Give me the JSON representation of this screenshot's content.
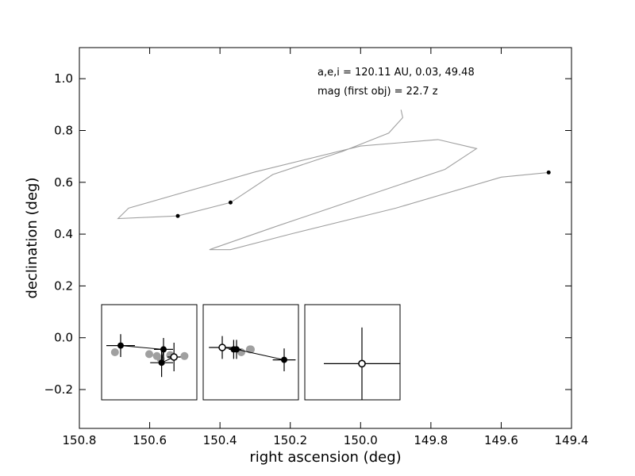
{
  "chart_data": {
    "type": "scatter",
    "xlabel": "right ascension (deg)",
    "ylabel": "declination (deg)",
    "xlim": [
      150.8,
      149.4
    ],
    "ylim": [
      -0.35,
      1.12
    ],
    "x_ticks": [
      150.8,
      150.6,
      150.4,
      150.2,
      150.0,
      149.8,
      149.6,
      149.4
    ],
    "x_tick_labels": [
      "150.8",
      "150.6",
      "150.4",
      "150.2",
      "150.0",
      "149.8",
      "149.6",
      "149.4"
    ],
    "y_ticks": [
      -0.2,
      0.0,
      0.2,
      0.4,
      0.6,
      0.8,
      1.0
    ],
    "y_tick_labels": [
      "−0.2",
      "0.0",
      "0.2",
      "0.4",
      "0.6",
      "0.8",
      "1.0"
    ],
    "grid": false,
    "annotations": [
      "a,e,i = 120.11 AU, 0.03, 49.48",
      "mag (first obj) =  22.7 z"
    ],
    "colors": {
      "orbit": "#a0a0a0",
      "points": "#000000",
      "predicted": "#a0a0a0"
    },
    "detections": [
      {
        "x": 150.52,
        "y": 0.47
      },
      {
        "x": 150.37,
        "y": 0.522
      },
      {
        "x": 149.465,
        "y": 0.638
      }
    ],
    "orbit_path": [
      {
        "x": 149.885,
        "y": 0.88
      },
      {
        "x": 149.88,
        "y": 0.85
      },
      {
        "x": 149.92,
        "y": 0.79
      },
      {
        "x": 150.05,
        "y": 0.72
      },
      {
        "x": 150.25,
        "y": 0.63
      },
      {
        "x": 150.37,
        "y": 0.522
      },
      {
        "x": 150.52,
        "y": 0.47
      },
      {
        "x": 150.69,
        "y": 0.46
      },
      {
        "x": 150.66,
        "y": 0.5
      },
      {
        "x": 150.3,
        "y": 0.64
      },
      {
        "x": 150.0,
        "y": 0.74
      },
      {
        "x": 149.78,
        "y": 0.765
      },
      {
        "x": 149.67,
        "y": 0.73
      },
      {
        "x": 149.76,
        "y": 0.65
      },
      {
        "x": 150.0,
        "y": 0.54
      },
      {
        "x": 150.24,
        "y": 0.43
      },
      {
        "x": 150.43,
        "y": 0.34
      },
      {
        "x": 150.37,
        "y": 0.34
      },
      {
        "x": 150.2,
        "y": 0.4
      },
      {
        "x": 149.9,
        "y": 0.5
      },
      {
        "x": 149.6,
        "y": 0.62
      },
      {
        "x": 149.465,
        "y": 0.638
      }
    ],
    "insets": [
      {
        "observed": [
          {
            "x": 0.2,
            "y": 0.57,
            "xerr": 0.15,
            "yerr": 0.12
          },
          {
            "x": 0.65,
            "y": 0.53,
            "xerr": 0.1,
            "yerr": 0.12
          },
          {
            "x": 0.63,
            "y": 0.39,
            "xerr": 0.12,
            "yerr": 0.15
          },
          {
            "x": 0.76,
            "y": 0.45,
            "xerr": 0.07,
            "yerr": 0.15,
            "open": true
          }
        ],
        "predicted": [
          {
            "x": 0.14,
            "y": 0.5
          },
          {
            "x": 0.5,
            "y": 0.48
          },
          {
            "x": 0.58,
            "y": 0.46
          },
          {
            "x": 0.62,
            "y": 0.43
          },
          {
            "x": 0.72,
            "y": 0.47
          },
          {
            "x": 0.87,
            "y": 0.46
          }
        ],
        "track": [
          [
            0.2,
            0.57
          ],
          [
            0.65,
            0.53
          ],
          [
            0.63,
            0.39
          ],
          [
            0.76,
            0.45
          ]
        ]
      },
      {
        "observed": [
          {
            "x": 0.2,
            "y": 0.55,
            "xerr": 0.14,
            "yerr": 0.12,
            "open": true
          },
          {
            "x": 0.32,
            "y": 0.53,
            "xerr": 0.05,
            "yerr": 0.1
          },
          {
            "x": 0.35,
            "y": 0.53,
            "xerr": 0.05,
            "yerr": 0.1
          },
          {
            "x": 0.85,
            "y": 0.42,
            "xerr": 0.12,
            "yerr": 0.12
          }
        ],
        "predicted": [
          {
            "x": 0.4,
            "y": 0.5
          },
          {
            "x": 0.49,
            "y": 0.53
          },
          {
            "x": 0.5,
            "y": 0.53
          }
        ],
        "track": [
          [
            0.2,
            0.55
          ],
          [
            0.35,
            0.53
          ],
          [
            0.85,
            0.42
          ]
        ]
      },
      {
        "observed": [
          {
            "x": 0.6,
            "y": 0.38,
            "xerr": 0.4,
            "yerr": 0.38,
            "open": true
          }
        ],
        "predicted": [
          {
            "x": 0.6,
            "y": 0.38
          }
        ],
        "track": []
      }
    ]
  }
}
